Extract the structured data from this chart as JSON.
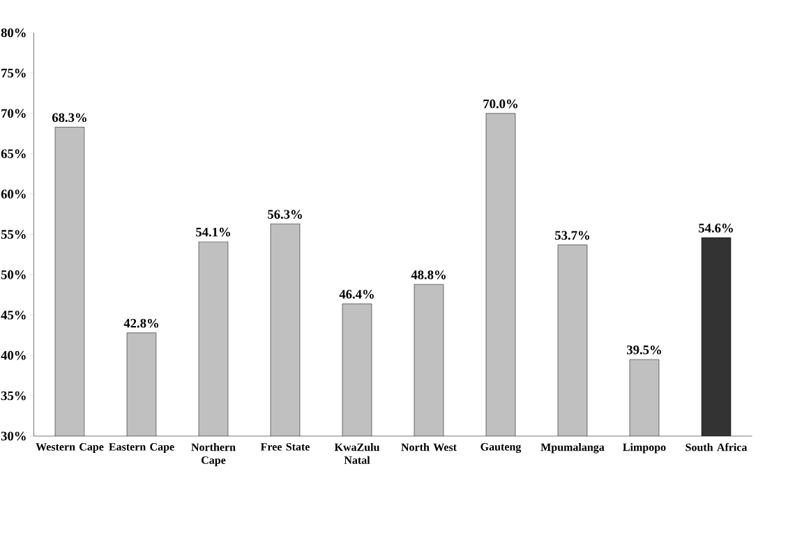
{
  "chart_data": {
    "type": "bar",
    "categories": [
      "Western Cape",
      "Eastern Cape",
      "Northern Cape",
      "Free State",
      "KwaZulu Natal",
      "North West",
      "Gauteng",
      "Mpumalanga",
      "Limpopo",
      "South Africa"
    ],
    "values": [
      68.3,
      42.8,
      54.1,
      56.3,
      46.4,
      48.8,
      70.0,
      53.7,
      39.5,
      54.6
    ],
    "value_labels": [
      "68.3%",
      "42.8%",
      "54.1%",
      "56.3%",
      "46.4%",
      "48.8%",
      "70.0%",
      "53.7%",
      "39.5%",
      "54.6%"
    ],
    "colors": [
      "#c0c0c0",
      "#c0c0c0",
      "#c0c0c0",
      "#c0c0c0",
      "#c0c0c0",
      "#c0c0c0",
      "#c0c0c0",
      "#c0c0c0",
      "#c0c0c0",
      "#333333"
    ],
    "ylim": [
      30,
      80
    ],
    "yticks": [
      {
        "value": 30,
        "label": "30%"
      },
      {
        "value": 35,
        "label": "35%"
      },
      {
        "value": 40,
        "label": "40%"
      },
      {
        "value": 45,
        "label": "45%"
      },
      {
        "value": 50,
        "label": "50%"
      },
      {
        "value": 55,
        "label": "55%"
      },
      {
        "value": 60,
        "label": "60%"
      },
      {
        "value": 65,
        "label": "65%"
      },
      {
        "value": 70,
        "label": "70%"
      },
      {
        "value": 75,
        "label": "75%"
      },
      {
        "value": 80,
        "label": "80%"
      }
    ],
    "grid": false
  }
}
